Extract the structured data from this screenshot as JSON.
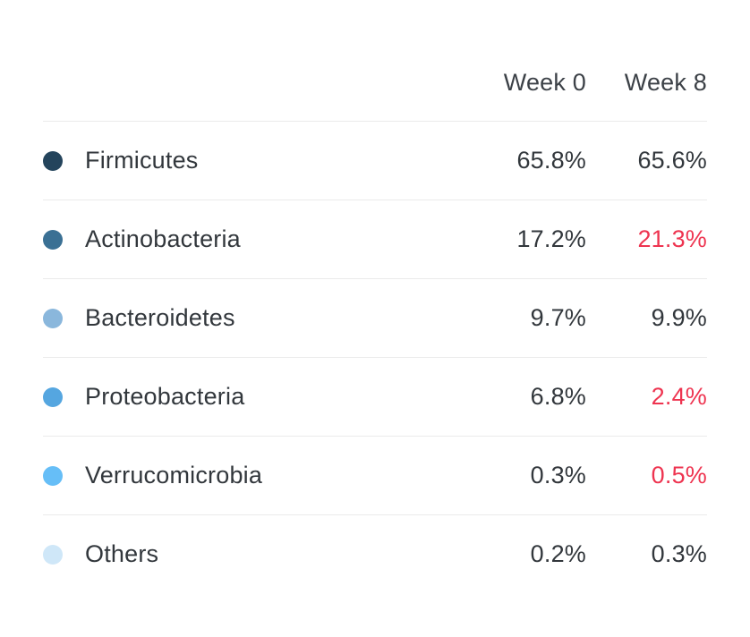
{
  "table": {
    "columns": [
      "Week 0",
      "Week 8"
    ],
    "rows": [
      {
        "label": "Firmicutes",
        "dot_color": "#24445c",
        "dot_icon": "legend-dot-firmicutes",
        "week0": "65.8%",
        "week8": "65.6%",
        "week8_highlight": false
      },
      {
        "label": "Actinobacteria",
        "dot_color": "#3a7094",
        "dot_icon": "legend-dot-actinobacteria",
        "week0": "17.2%",
        "week8": "21.3%",
        "week8_highlight": true
      },
      {
        "label": "Bacteroidetes",
        "dot_color": "#8ab7dc",
        "dot_icon": "legend-dot-bacteroidetes",
        "week0": "9.7%",
        "week8": "9.9%",
        "week8_highlight": false
      },
      {
        "label": "Proteobacteria",
        "dot_color": "#55a6e0",
        "dot_icon": "legend-dot-proteobacteria",
        "week0": "6.8%",
        "week8": "2.4%",
        "week8_highlight": true
      },
      {
        "label": "Verrucomicrobia",
        "dot_color": "#66bef7",
        "dot_icon": "legend-dot-verrucomicrobia",
        "week0": "0.3%",
        "week8": "0.5%",
        "week8_highlight": true
      },
      {
        "label": "Others",
        "dot_color": "#cfe7f8",
        "dot_icon": "legend-dot-others",
        "week0": "0.2%",
        "week8": "0.3%",
        "week8_highlight": false
      }
    ],
    "colors": {
      "text": "#32373c",
      "header_text": "#3c4147",
      "highlight_red": "#ee3450",
      "divider": "#ebebeb",
      "background": "#ffffff"
    }
  },
  "chart_data": {
    "type": "table",
    "title": "",
    "categories": [
      "Firmicutes",
      "Actinobacteria",
      "Bacteroidetes",
      "Proteobacteria",
      "Verrucomicrobia",
      "Others"
    ],
    "series": [
      {
        "name": "Week 0",
        "values": [
          65.8,
          17.2,
          9.7,
          6.8,
          0.3,
          0.2
        ]
      },
      {
        "name": "Week 8",
        "values": [
          65.6,
          21.3,
          9.9,
          2.4,
          0.5,
          0.3
        ]
      }
    ],
    "value_unit": "%",
    "highlighted_week8_values": [
      21.3,
      2.4,
      0.5
    ],
    "legend_position": "left-dots",
    "grid": "horizontal-dividers"
  }
}
